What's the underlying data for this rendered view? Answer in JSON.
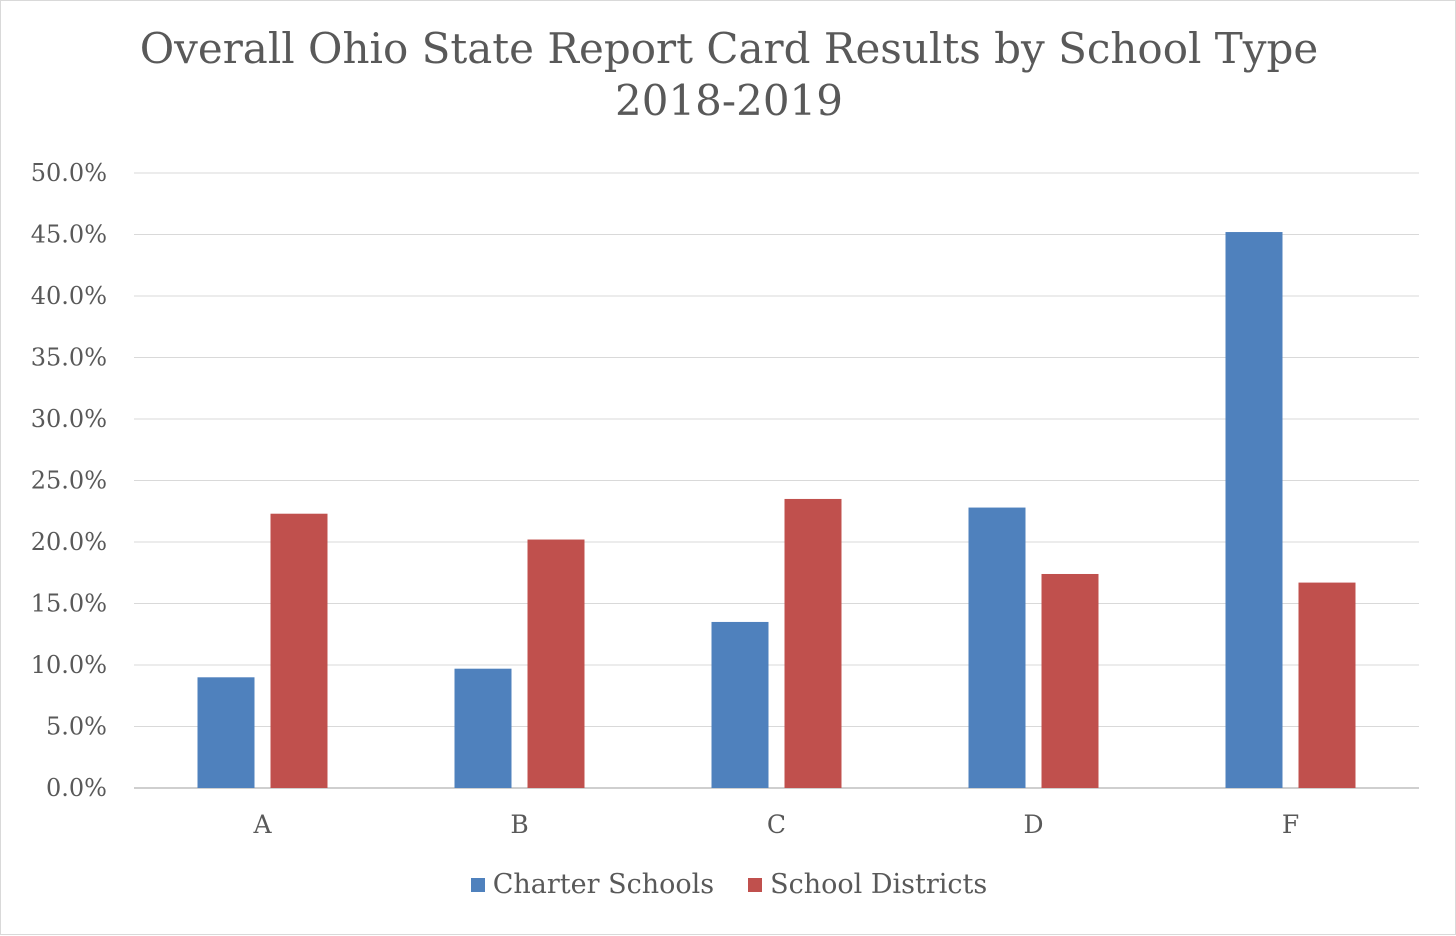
{
  "chart_data": {
    "type": "bar",
    "title": "Overall Ohio State Report Card Results by School Type",
    "subtitle": "2018-2019",
    "categories": [
      "A",
      "B",
      "C",
      "D",
      "F"
    ],
    "series": [
      {
        "name": "Charter Schools",
        "color": "#4f81bd",
        "values": [
          9.0,
          9.7,
          13.5,
          22.8,
          45.2
        ]
      },
      {
        "name": "School Districts",
        "color": "#c0504d",
        "values": [
          22.3,
          20.2,
          23.5,
          17.4,
          16.7
        ]
      }
    ],
    "yticks": [
      "0.0%",
      "5.0%",
      "10.0%",
      "15.0%",
      "20.0%",
      "25.0%",
      "30.0%",
      "35.0%",
      "40.0%",
      "45.0%",
      "50.0%"
    ],
    "ylim": [
      0,
      50
    ],
    "y_unit": "%",
    "xlabel": "",
    "ylabel": "",
    "grid": true,
    "legend_position": "bottom"
  }
}
